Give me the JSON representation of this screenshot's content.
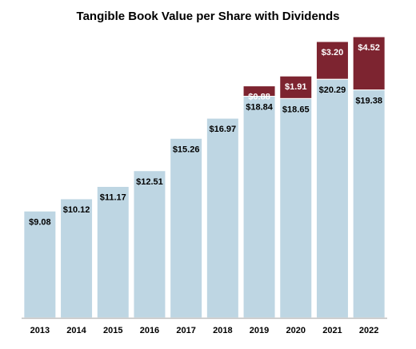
{
  "chart_data": {
    "type": "bar",
    "stacked": true,
    "title": "Tangible Book Value per Share with Dividends",
    "categories": [
      "2013",
      "2014",
      "2015",
      "2016",
      "2017",
      "2018",
      "2019",
      "2020",
      "2021",
      "2022"
    ],
    "series": [
      {
        "values": [
          9.08,
          10.12,
          11.17,
          12.51,
          15.26,
          16.97,
          18.84,
          18.65,
          20.29,
          19.38
        ],
        "labels": [
          "$9.08",
          "$10.12",
          "$11.17",
          "$12.51",
          "$15.26",
          "$16.97",
          "$18.84",
          "$18.65",
          "$20.29",
          "$19.38"
        ],
        "color": "#bed6e3",
        "label_color": "#000000"
      },
      {
        "values": [
          null,
          null,
          null,
          null,
          null,
          null,
          0.88,
          1.91,
          3.2,
          4.52
        ],
        "labels": [
          null,
          null,
          null,
          null,
          null,
          null,
          "$0.88",
          "$1.91",
          "$3.20",
          "$4.52"
        ],
        "color": "#7d2430",
        "label_color": "#ffffff"
      }
    ],
    "ylim": [
      0,
      23.9
    ],
    "grid": false,
    "legend": "none",
    "baseline_color": "#bfbfbf"
  }
}
